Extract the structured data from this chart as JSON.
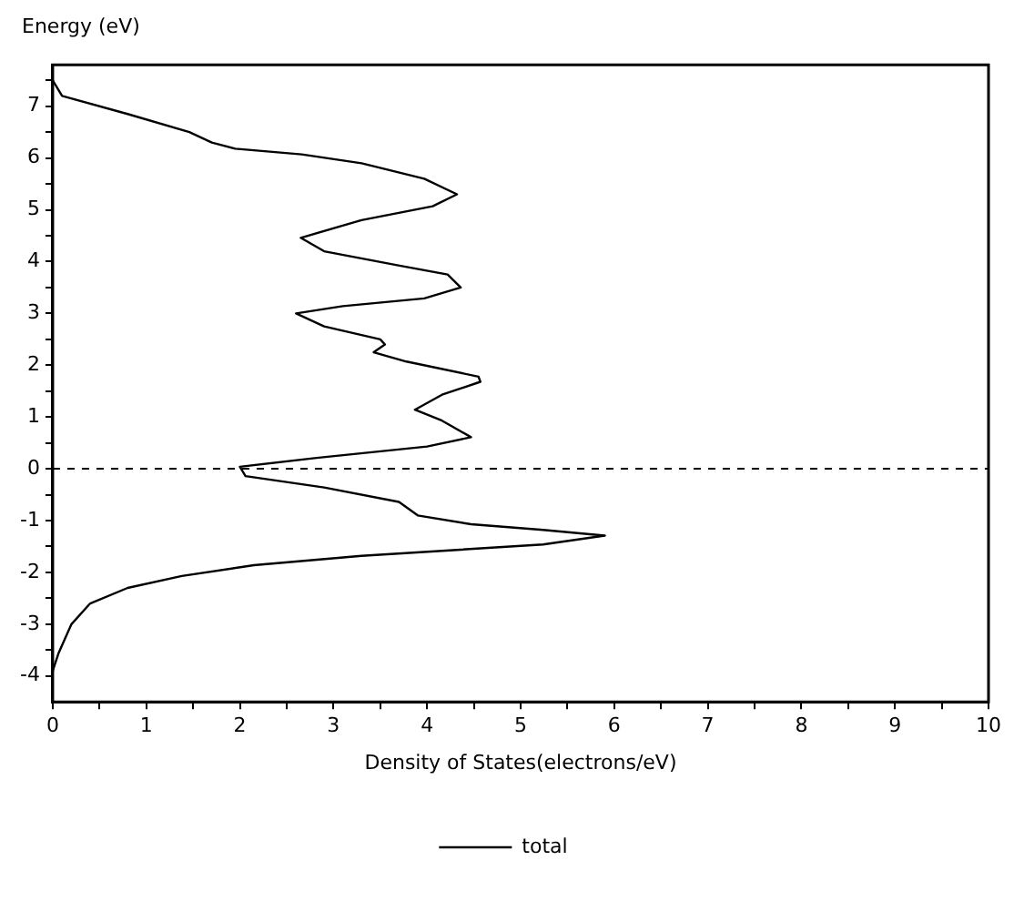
{
  "chart_data": {
    "type": "line",
    "xlabel": "Density of States(electrons/eV)",
    "ylabel": "Energy (eV)",
    "series": [
      {
        "name": "total",
        "color": "#000000",
        "x": [
          0,
          0.1,
          0.8,
          1.46,
          1.7,
          1.95,
          2.66,
          3.3,
          3.97,
          4.32,
          4.06,
          3.3,
          2.65,
          2.9,
          3.68,
          4.22,
          4.36,
          3.97,
          3.1,
          2.6,
          2.9,
          3.5,
          3.55,
          3.43,
          3.78,
          4.55,
          4.57,
          4.16,
          3.87,
          4.16,
          4.47,
          4.0,
          2.82,
          2.0,
          2.06,
          2.9,
          3.7,
          3.9,
          4.47,
          5.24,
          5.9,
          5.24,
          4.28,
          3.3,
          2.15,
          1.38,
          0.8,
          0.4,
          0.2,
          0.06,
          0
        ],
        "values": [
          7.5,
          7.2,
          6.85,
          6.5,
          6.3,
          6.18,
          6.07,
          5.9,
          5.6,
          5.3,
          5.07,
          4.8,
          4.46,
          4.2,
          3.93,
          3.75,
          3.5,
          3.29,
          3.14,
          3.0,
          2.75,
          2.5,
          2.4,
          2.25,
          2.07,
          1.78,
          1.68,
          1.43,
          1.14,
          0.93,
          0.61,
          0.43,
          0.21,
          0.04,
          -0.14,
          -0.36,
          -0.64,
          -0.9,
          -1.07,
          -1.18,
          -1.29,
          -1.46,
          -1.57,
          -1.68,
          -1.86,
          -2.07,
          -2.3,
          -2.6,
          -3.0,
          -3.57,
          -3.9
        ]
      }
    ],
    "xlim": [
      0,
      10
    ],
    "ylim": [
      -4.5,
      7.8
    ],
    "xticks": [
      0,
      {
        "value": 0.5,
        "label": null
      },
      1,
      {
        "value": 1.5,
        "label": null
      },
      2,
      {
        "value": 2.5,
        "label": null
      },
      3,
      {
        "value": 3.5,
        "label": null
      },
      4,
      {
        "value": 4.5,
        "label": null
      },
      5,
      {
        "value": 5.5,
        "label": null
      },
      6,
      {
        "value": 6.5,
        "label": null
      },
      7,
      {
        "value": 7.5,
        "label": null
      },
      8,
      {
        "value": 8.5,
        "label": null
      },
      9,
      {
        "value": 9.5,
        "label": null
      },
      10
    ],
    "yticks": [
      -4,
      {
        "value": -3.5,
        "label": null
      },
      -3,
      {
        "value": -2.5,
        "label": null
      },
      -2,
      {
        "value": -1.5,
        "label": null
      },
      -1,
      {
        "value": -0.5,
        "label": null
      },
      0,
      {
        "value": 0.5,
        "label": null
      },
      1,
      {
        "value": 1.5,
        "label": null
      },
      2,
      {
        "value": 2.5,
        "label": null
      },
      3,
      {
        "value": 3.5,
        "label": null
      },
      4,
      {
        "value": 4.5,
        "label": null
      },
      5,
      {
        "value": 5.5,
        "label": null
      },
      6,
      {
        "value": 6.5,
        "label": null
      },
      7,
      {
        "value": 7.5,
        "label": null
      }
    ],
    "ref_lines": [
      {
        "axis": "y",
        "value": 0,
        "line_style": "dashed"
      }
    ],
    "legend": "bottom",
    "marker": "none",
    "grid": false
  }
}
